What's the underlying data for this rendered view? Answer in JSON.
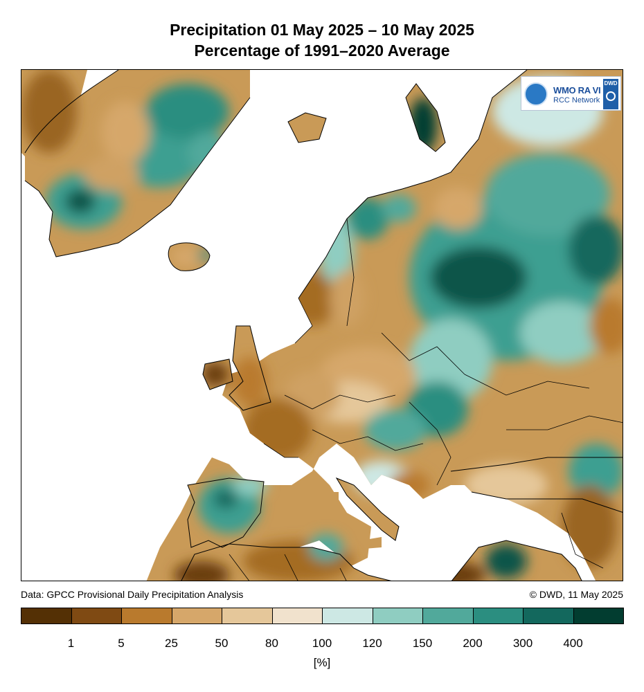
{
  "header": {
    "title_line1": "Precipitation 01 May 2025 – 10 May 2025",
    "title_line2": "Percentage of 1991–2020 Average"
  },
  "logo": {
    "org": "WMO RA VI",
    "network": "RCC Network",
    "badge": "DWD",
    "globe_icon": "wmo-globe-icon",
    "swirl_icon": "dwd-swirl-icon"
  },
  "footer": {
    "source": "Data: GPCC Provisional Daily Precipitation Analysis",
    "copyright": "© DWD, 11 May 2025"
  },
  "legend": {
    "ticks": [
      "1",
      "5",
      "25",
      "50",
      "80",
      "100",
      "120",
      "150",
      "200",
      "300",
      "400"
    ],
    "colors": [
      "#543005",
      "#7f4a13",
      "#b97a2d",
      "#d6a76a",
      "#e5c79a",
      "#f1e2cd",
      "#cde8e4",
      "#8fcdc1",
      "#51a99b",
      "#2b8e80",
      "#13685d",
      "#023d30"
    ],
    "unit": "[%]"
  },
  "map": {
    "land_color": "#c99a57",
    "sea_color": "#ffffff",
    "border_color": "#000000"
  }
}
